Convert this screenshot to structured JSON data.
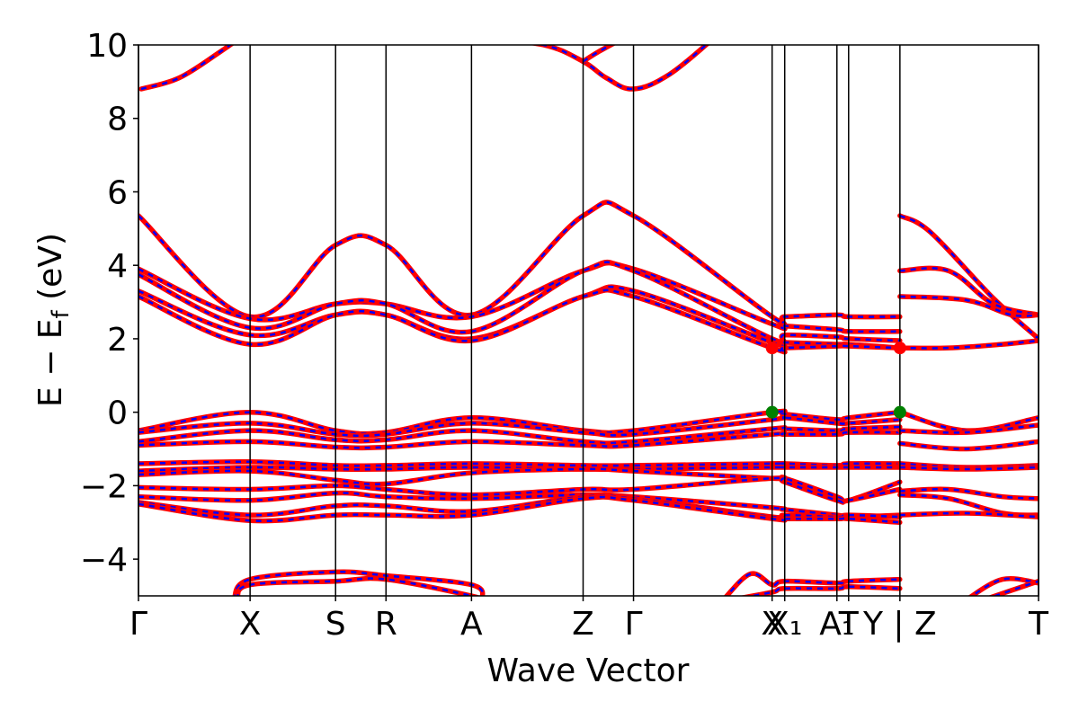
{
  "chart_data": {
    "type": "line",
    "title": "",
    "xlabel": "Wave Vector",
    "ylabel": "E − E",
    "ylabel_sub": "f",
    "ylabel_unit": " (eV)",
    "ylim": [
      -5,
      10
    ],
    "y_ticks": [
      -4,
      -2,
      0,
      2,
      4,
      6,
      8,
      10
    ],
    "y_tick_labels": [
      "−4",
      "−2",
      "0",
      "2",
      "4",
      "6",
      "8",
      "10"
    ],
    "x_ticks": [
      {
        "label": "Γ",
        "k": 0.0
      },
      {
        "label": "X",
        "k": 0.124
      },
      {
        "label": "S",
        "k": 0.219
      },
      {
        "label": "R",
        "k": 0.275
      },
      {
        "label": "A",
        "k": 0.37
      },
      {
        "label": "Z",
        "k": 0.494
      },
      {
        "label": "Γ",
        "k": 0.55
      },
      {
        "label": "X",
        "k": 0.704
      },
      {
        "label": "X₁",
        "k": 0.718
      },
      {
        "label": "A₁",
        "k": 0.776
      },
      {
        "label": "T",
        "k": 0.789
      },
      {
        "label": "Y | Z",
        "k": 0.846
      },
      {
        "label": "T",
        "k": 1.0
      }
    ],
    "segment_break": 0.846,
    "band_colors": {
      "solid": "#ff0000",
      "dashed": "#0000ff"
    },
    "markers": [
      {
        "label": "CBM",
        "k": 0.704,
        "energy": 1.75,
        "color": "#ff0000"
      },
      {
        "label": "CBM",
        "k": 0.846,
        "energy": 1.75,
        "color": "#ff0000"
      },
      {
        "label": "VBM",
        "k": 0.704,
        "energy": 0.0,
        "color": "#008000"
      },
      {
        "label": "VBM",
        "k": 0.846,
        "energy": 0.0,
        "color": "#008000"
      }
    ],
    "series": [
      {
        "k": [
          0,
          0.124,
          0.219,
          0.275,
          0.37,
          0.494,
          0.55,
          0.704,
          0.718,
          0.776,
          0.789,
          0.846
        ],
        "values": [
          5.35,
          2.6,
          4.55,
          4.55,
          2.65,
          5.35,
          5.35,
          2.6,
          2.6,
          2.65,
          2.6,
          2.6
        ]
      },
      {
        "k": [
          0,
          0.124,
          0.219,
          0.275,
          0.37,
          0.494,
          0.55,
          0.704,
          0.718,
          0.776,
          0.789,
          0.846
        ],
        "values": [
          3.9,
          2.55,
          2.95,
          2.95,
          2.6,
          3.85,
          3.9,
          2.4,
          2.35,
          2.25,
          2.2,
          2.2
        ]
      },
      {
        "k": [
          0,
          0.124,
          0.219,
          0.275,
          0.37,
          0.494,
          0.55,
          0.704,
          0.718,
          0.776,
          0.789,
          0.846
        ],
        "values": [
          3.75,
          2.3,
          2.95,
          2.95,
          2.2,
          3.85,
          3.85,
          2.0,
          2.1,
          2.05,
          2.0,
          1.95
        ]
      },
      {
        "k": [
          0,
          0.124,
          0.219,
          0.275,
          0.37,
          0.494,
          0.55,
          0.704,
          0.718,
          0.776,
          0.789,
          0.846
        ],
        "values": [
          3.3,
          2.1,
          2.65,
          2.65,
          2.0,
          3.15,
          3.3,
          1.9,
          1.9,
          1.85,
          1.85,
          1.75
        ]
      },
      {
        "k": [
          0,
          0.124,
          0.219,
          0.275,
          0.37,
          0.494,
          0.55,
          0.704,
          0.718,
          0.776,
          0.789,
          0.846
        ],
        "values": [
          3.15,
          1.85,
          2.65,
          2.65,
          1.95,
          3.15,
          3.15,
          1.75,
          1.75,
          1.8,
          1.8,
          1.75
        ]
      },
      {
        "k": [
          0,
          0.124,
          0.219,
          0.275,
          0.37,
          0.494,
          0.55,
          0.704,
          0.718,
          0.776,
          0.789,
          0.846
        ],
        "values": [
          -0.5,
          0.0,
          -0.5,
          -0.55,
          -0.15,
          -0.5,
          -0.5,
          0.0,
          -0.05,
          -0.2,
          -0.15,
          0.0
        ]
      },
      {
        "k": [
          0,
          0.124,
          0.219,
          0.275,
          0.37,
          0.494,
          0.55,
          0.704,
          0.718,
          0.776,
          0.789,
          0.846
        ],
        "values": [
          -0.55,
          -0.3,
          -0.6,
          -0.6,
          -0.3,
          -0.55,
          -0.6,
          -0.2,
          -0.15,
          -0.3,
          -0.3,
          -0.2
        ]
      },
      {
        "k": [
          0,
          0.124,
          0.219,
          0.275,
          0.37,
          0.494,
          0.55,
          0.704,
          0.718,
          0.776,
          0.789,
          0.846
        ],
        "values": [
          -0.8,
          -0.5,
          -0.75,
          -0.75,
          -0.5,
          -0.8,
          -0.8,
          -0.45,
          -0.45,
          -0.5,
          -0.45,
          -0.4
        ]
      },
      {
        "k": [
          0,
          0.124,
          0.219,
          0.275,
          0.37,
          0.494,
          0.55,
          0.704,
          0.718,
          0.776,
          0.789,
          0.846
        ],
        "values": [
          -0.9,
          -0.8,
          -0.95,
          -0.95,
          -0.8,
          -0.9,
          -0.9,
          -0.6,
          -0.6,
          -0.6,
          -0.55,
          -0.55
        ]
      },
      {
        "k": [
          0,
          0.124,
          0.219,
          0.275,
          0.37,
          0.494,
          0.55,
          0.704,
          0.718,
          0.776,
          0.789,
          0.846
        ],
        "values": [
          -1.4,
          -1.35,
          -1.45,
          -1.45,
          -1.4,
          -1.45,
          -1.45,
          -1.4,
          -1.4,
          -1.45,
          -1.4,
          -1.4
        ]
      },
      {
        "k": [
          0,
          0.124,
          0.219,
          0.275,
          0.37,
          0.494,
          0.55,
          0.704,
          0.718,
          0.776,
          0.789,
          0.846
        ],
        "values": [
          -1.6,
          -1.5,
          -1.55,
          -1.55,
          -1.5,
          -1.55,
          -1.55,
          -1.5,
          -1.5,
          -1.5,
          -1.5,
          -1.5
        ]
      },
      {
        "k": [
          0,
          0.124,
          0.219,
          0.275,
          0.37,
          0.494,
          0.55,
          0.704,
          0.718,
          0.776,
          0.789,
          0.846
        ],
        "values": [
          -1.7,
          -1.6,
          -1.85,
          -1.95,
          -1.65,
          -1.55,
          -1.6,
          -1.8,
          -1.8,
          -2.3,
          -2.4,
          -1.9
        ]
      },
      {
        "k": [
          0,
          0.124,
          0.219,
          0.275,
          0.37,
          0.494,
          0.55,
          0.704,
          0.718,
          0.776,
          0.789,
          0.846
        ],
        "values": [
          -2.05,
          -2.1,
          -2.0,
          -2.1,
          -2.25,
          -2.1,
          -2.1,
          -1.8,
          -1.9,
          -2.4,
          -2.4,
          -2.1
        ]
      },
      {
        "k": [
          0,
          0.124,
          0.219,
          0.275,
          0.37,
          0.494,
          0.55,
          0.704,
          0.718,
          0.776,
          0.789,
          0.846
        ],
        "values": [
          -2.3,
          -2.4,
          -2.2,
          -2.3,
          -2.35,
          -2.25,
          -2.3,
          -2.6,
          -2.65,
          -2.8,
          -2.85,
          -2.8
        ]
      },
      {
        "k": [
          0,
          0.124,
          0.219,
          0.275,
          0.37,
          0.494,
          0.55,
          0.704,
          0.718,
          0.776,
          0.789,
          0.846
        ],
        "values": [
          -2.45,
          -2.8,
          -2.55,
          -2.55,
          -2.7,
          -2.3,
          -2.35,
          -2.85,
          -2.8,
          -2.85,
          -2.8,
          -2.85
        ]
      },
      {
        "k": [
          0,
          0.124,
          0.219,
          0.275,
          0.37,
          0.494,
          0.55,
          0.704,
          0.718,
          0.776,
          0.789,
          0.846
        ],
        "values": [
          -2.5,
          -2.95,
          -2.8,
          -2.8,
          -2.8,
          -2.35,
          -2.4,
          -2.9,
          -2.9,
          -2.9,
          -2.9,
          -3.0
        ]
      },
      {
        "k": [
          0.003,
          0.045,
          0.09,
          0.113
        ],
        "values": [
          8.8,
          9.1,
          9.8,
          10.2
        ]
      },
      {
        "k": [
          0.376,
          0.45,
          0.494,
          0.52,
          0.55,
          0.59,
          0.64
        ],
        "values": [
          10.2,
          10.0,
          9.55,
          9.1,
          8.8,
          9.2,
          10.2
        ]
      },
      {
        "k": [
          0.494,
          0.51,
          0.54
        ],
        "values": [
          9.55,
          9.8,
          10.2
        ]
      },
      {
        "k": [
          0.106,
          0.124,
          0.219,
          0.275,
          0.37,
          0.382
        ],
        "values": [
          -5.1,
          -4.55,
          -4.35,
          -4.45,
          -4.7,
          -5.1
        ]
      },
      {
        "k": [
          0.11,
          0.124,
          0.219,
          0.275,
          0.37,
          0.376
        ],
        "values": [
          -5.1,
          -4.7,
          -4.6,
          -4.55,
          -5.0,
          -5.1
        ]
      },
      {
        "k": [
          0.65,
          0.68,
          0.704,
          0.718,
          0.776,
          0.789,
          0.846
        ],
        "values": [
          -5.1,
          -4.4,
          -4.7,
          -4.6,
          -4.65,
          -4.6,
          -4.55
        ]
      },
      {
        "k": [
          0.66,
          0.704,
          0.718,
          0.776,
          0.789,
          0.846
        ],
        "values": [
          -5.1,
          -4.9,
          -4.8,
          -4.8,
          -4.75,
          -4.8
        ]
      },
      {
        "k": [
          0.846,
          0.88,
          0.95,
          1.0
        ],
        "values": [
          5.35,
          4.9,
          3.1,
          2.0
        ]
      },
      {
        "k": [
          0.846,
          0.9,
          0.95,
          1.0
        ],
        "values": [
          3.85,
          3.85,
          2.95,
          2.65
        ]
      },
      {
        "k": [
          0.846,
          0.92,
          0.97,
          1.0
        ],
        "values": [
          3.15,
          3.05,
          2.65,
          2.65
        ]
      },
      {
        "k": [
          0.846,
          0.9,
          0.96,
          1.0
        ],
        "values": [
          1.75,
          1.75,
          1.85,
          1.95
        ]
      },
      {
        "k": [
          0.846,
          0.92,
          1.0
        ],
        "values": [
          0.0,
          -0.5,
          -0.15
        ]
      },
      {
        "k": [
          0.846,
          0.92,
          1.0
        ],
        "values": [
          -0.5,
          -0.55,
          -0.35
        ]
      },
      {
        "k": [
          0.846,
          0.92,
          1.0
        ],
        "values": [
          -0.85,
          -1.0,
          -0.8
        ]
      },
      {
        "k": [
          0.846,
          0.92,
          1.0
        ],
        "values": [
          -1.4,
          -1.5,
          -1.45
        ]
      },
      {
        "k": [
          0.846,
          0.92,
          1.0
        ],
        "values": [
          -1.5,
          -1.55,
          -1.5
        ]
      },
      {
        "k": [
          0.846,
          0.9,
          0.96,
          1.0
        ],
        "values": [
          -2.15,
          -2.1,
          -2.3,
          -2.35
        ]
      },
      {
        "k": [
          0.846,
          0.9,
          0.96,
          1.0
        ],
        "values": [
          -2.25,
          -2.35,
          -2.75,
          -2.8
        ]
      },
      {
        "k": [
          0.846,
          0.92,
          1.0
        ],
        "values": [
          -2.8,
          -2.75,
          -2.85
        ]
      },
      {
        "k": [
          0.92,
          0.96,
          1.0
        ],
        "values": [
          -5.1,
          -4.55,
          -4.65
        ]
      },
      {
        "k": [
          0.94,
          1.0
        ],
        "values": [
          -5.1,
          -4.6
        ]
      }
    ]
  }
}
